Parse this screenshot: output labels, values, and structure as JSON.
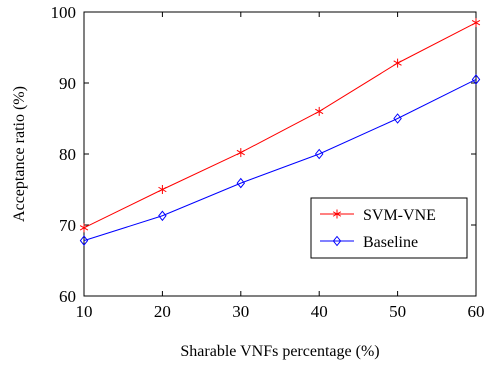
{
  "chart_data": {
    "type": "line",
    "title": "",
    "xlabel": "Sharable VNFs percentage (%)",
    "ylabel": "Acceptance ratio (%)",
    "xlim": [
      10,
      60
    ],
    "ylim": [
      60,
      100
    ],
    "xticks": [
      10,
      20,
      30,
      40,
      50,
      60
    ],
    "yticks": [
      60,
      70,
      80,
      90,
      100
    ],
    "grid": false,
    "legend_position": "lower-right",
    "x": [
      10,
      20,
      30,
      40,
      50,
      60
    ],
    "series": [
      {
        "name": "SVM-VNE",
        "values": [
          69.6,
          75.0,
          80.2,
          86.0,
          92.8,
          98.5
        ],
        "color": "#ff0000",
        "marker": "star"
      },
      {
        "name": "Baseline",
        "values": [
          67.8,
          71.3,
          75.9,
          80.0,
          85.0,
          90.5
        ],
        "color": "#0000ff",
        "marker": "diamond"
      }
    ]
  }
}
